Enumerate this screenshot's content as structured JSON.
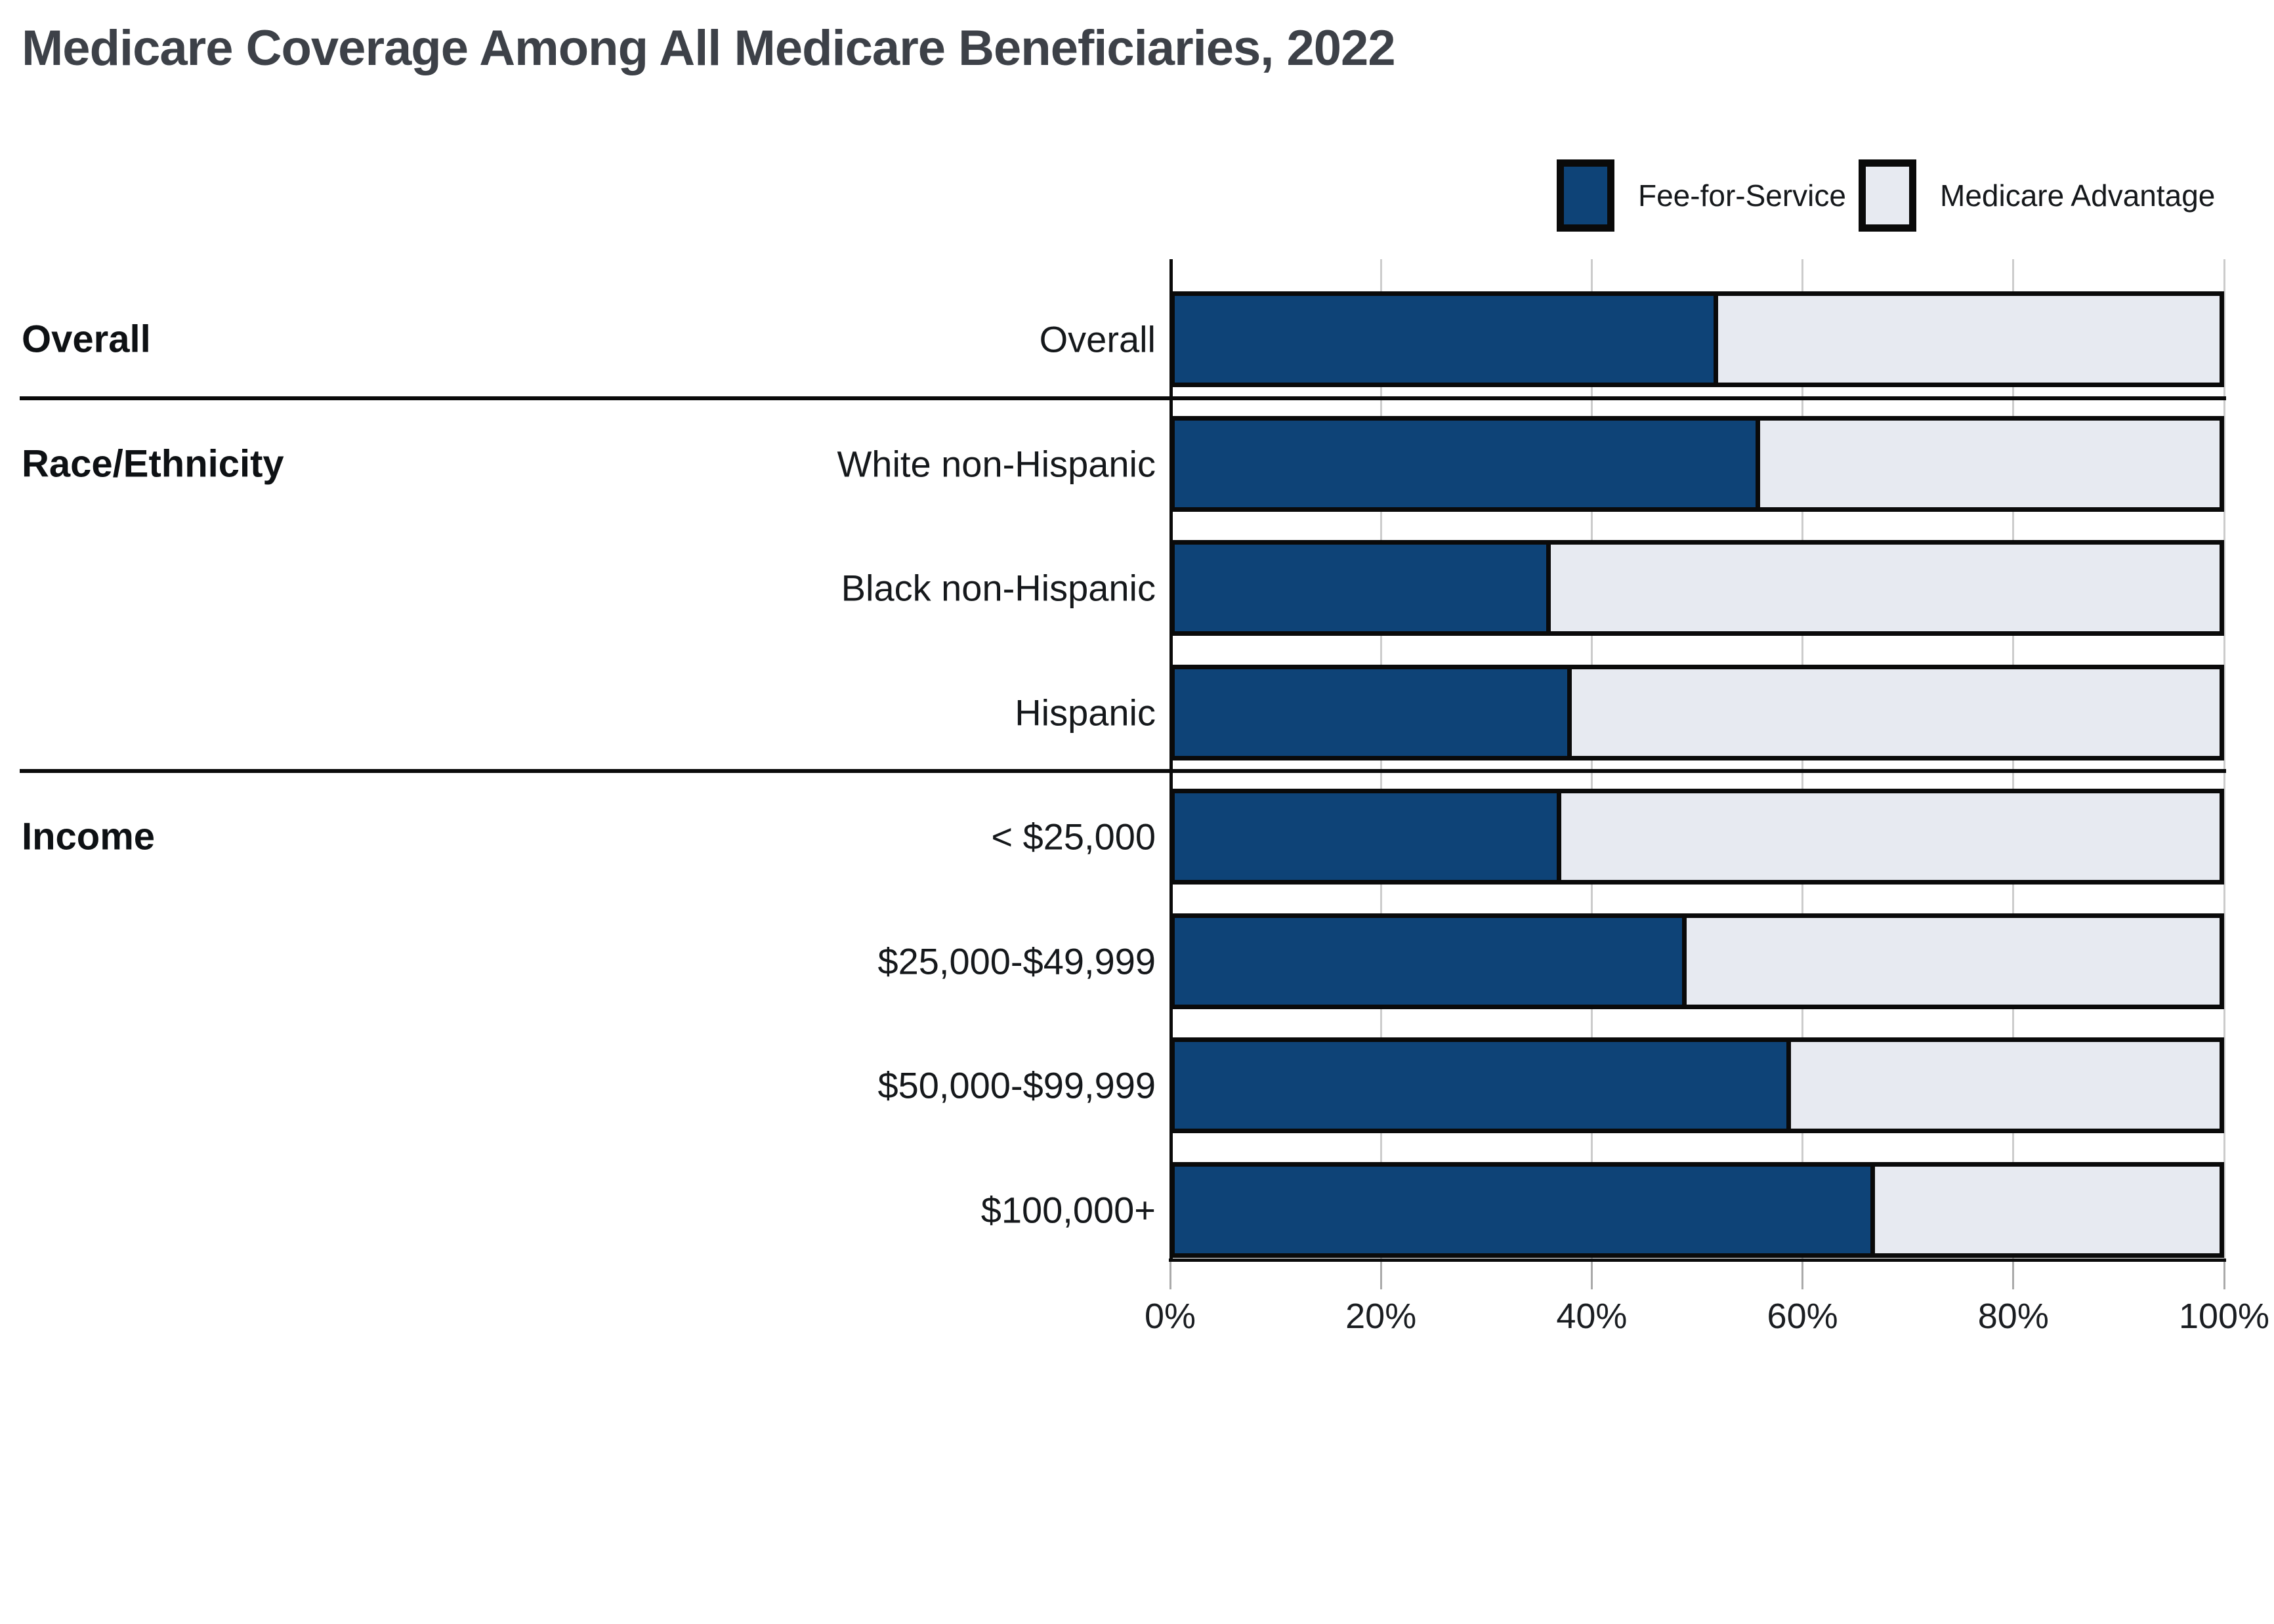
{
  "title": "Medicare Coverage Among All Medicare Beneficiaries, 2022",
  "chart_data": {
    "type": "bar",
    "orientation": "horizontal",
    "stacked": true,
    "title": "Medicare Coverage Among All Medicare Beneficiaries, 2022",
    "categories": [
      "Overall",
      "White non-Hispanic",
      "Black non-Hispanic",
      "Hispanic",
      "< $25,000",
      "$25,000-$49,999",
      "$50,000-$99,999",
      "$100,000+"
    ],
    "series": [
      {
        "name": "Fee-for-Service",
        "color": "#0e4377",
        "values": [
          52,
          56,
          36,
          38,
          37,
          49,
          59,
          67
        ]
      },
      {
        "name": "Medicare Advantage",
        "color": "#e7eaf1",
        "values": [
          48,
          44,
          64,
          62,
          63,
          51,
          41,
          33
        ]
      }
    ],
    "sections": [
      {
        "label": "Overall",
        "first_row": 0
      },
      {
        "label": "Race/Ethnicity",
        "first_row": 1
      },
      {
        "label": "Income",
        "first_row": 4
      }
    ],
    "x_ticks": [
      {
        "label": "0%",
        "value": 0
      },
      {
        "label": "20%",
        "value": 20
      },
      {
        "label": "40%",
        "value": 40
      },
      {
        "label": "60%",
        "value": 60
      },
      {
        "label": "80%",
        "value": 80
      },
      {
        "label": "100%",
        "value": 100
      }
    ],
    "xlim": [
      0,
      100
    ],
    "grid": true,
    "legend_position": "top-right",
    "axis_color": "#0a0a0a",
    "gridline_color": "#cccccc"
  }
}
